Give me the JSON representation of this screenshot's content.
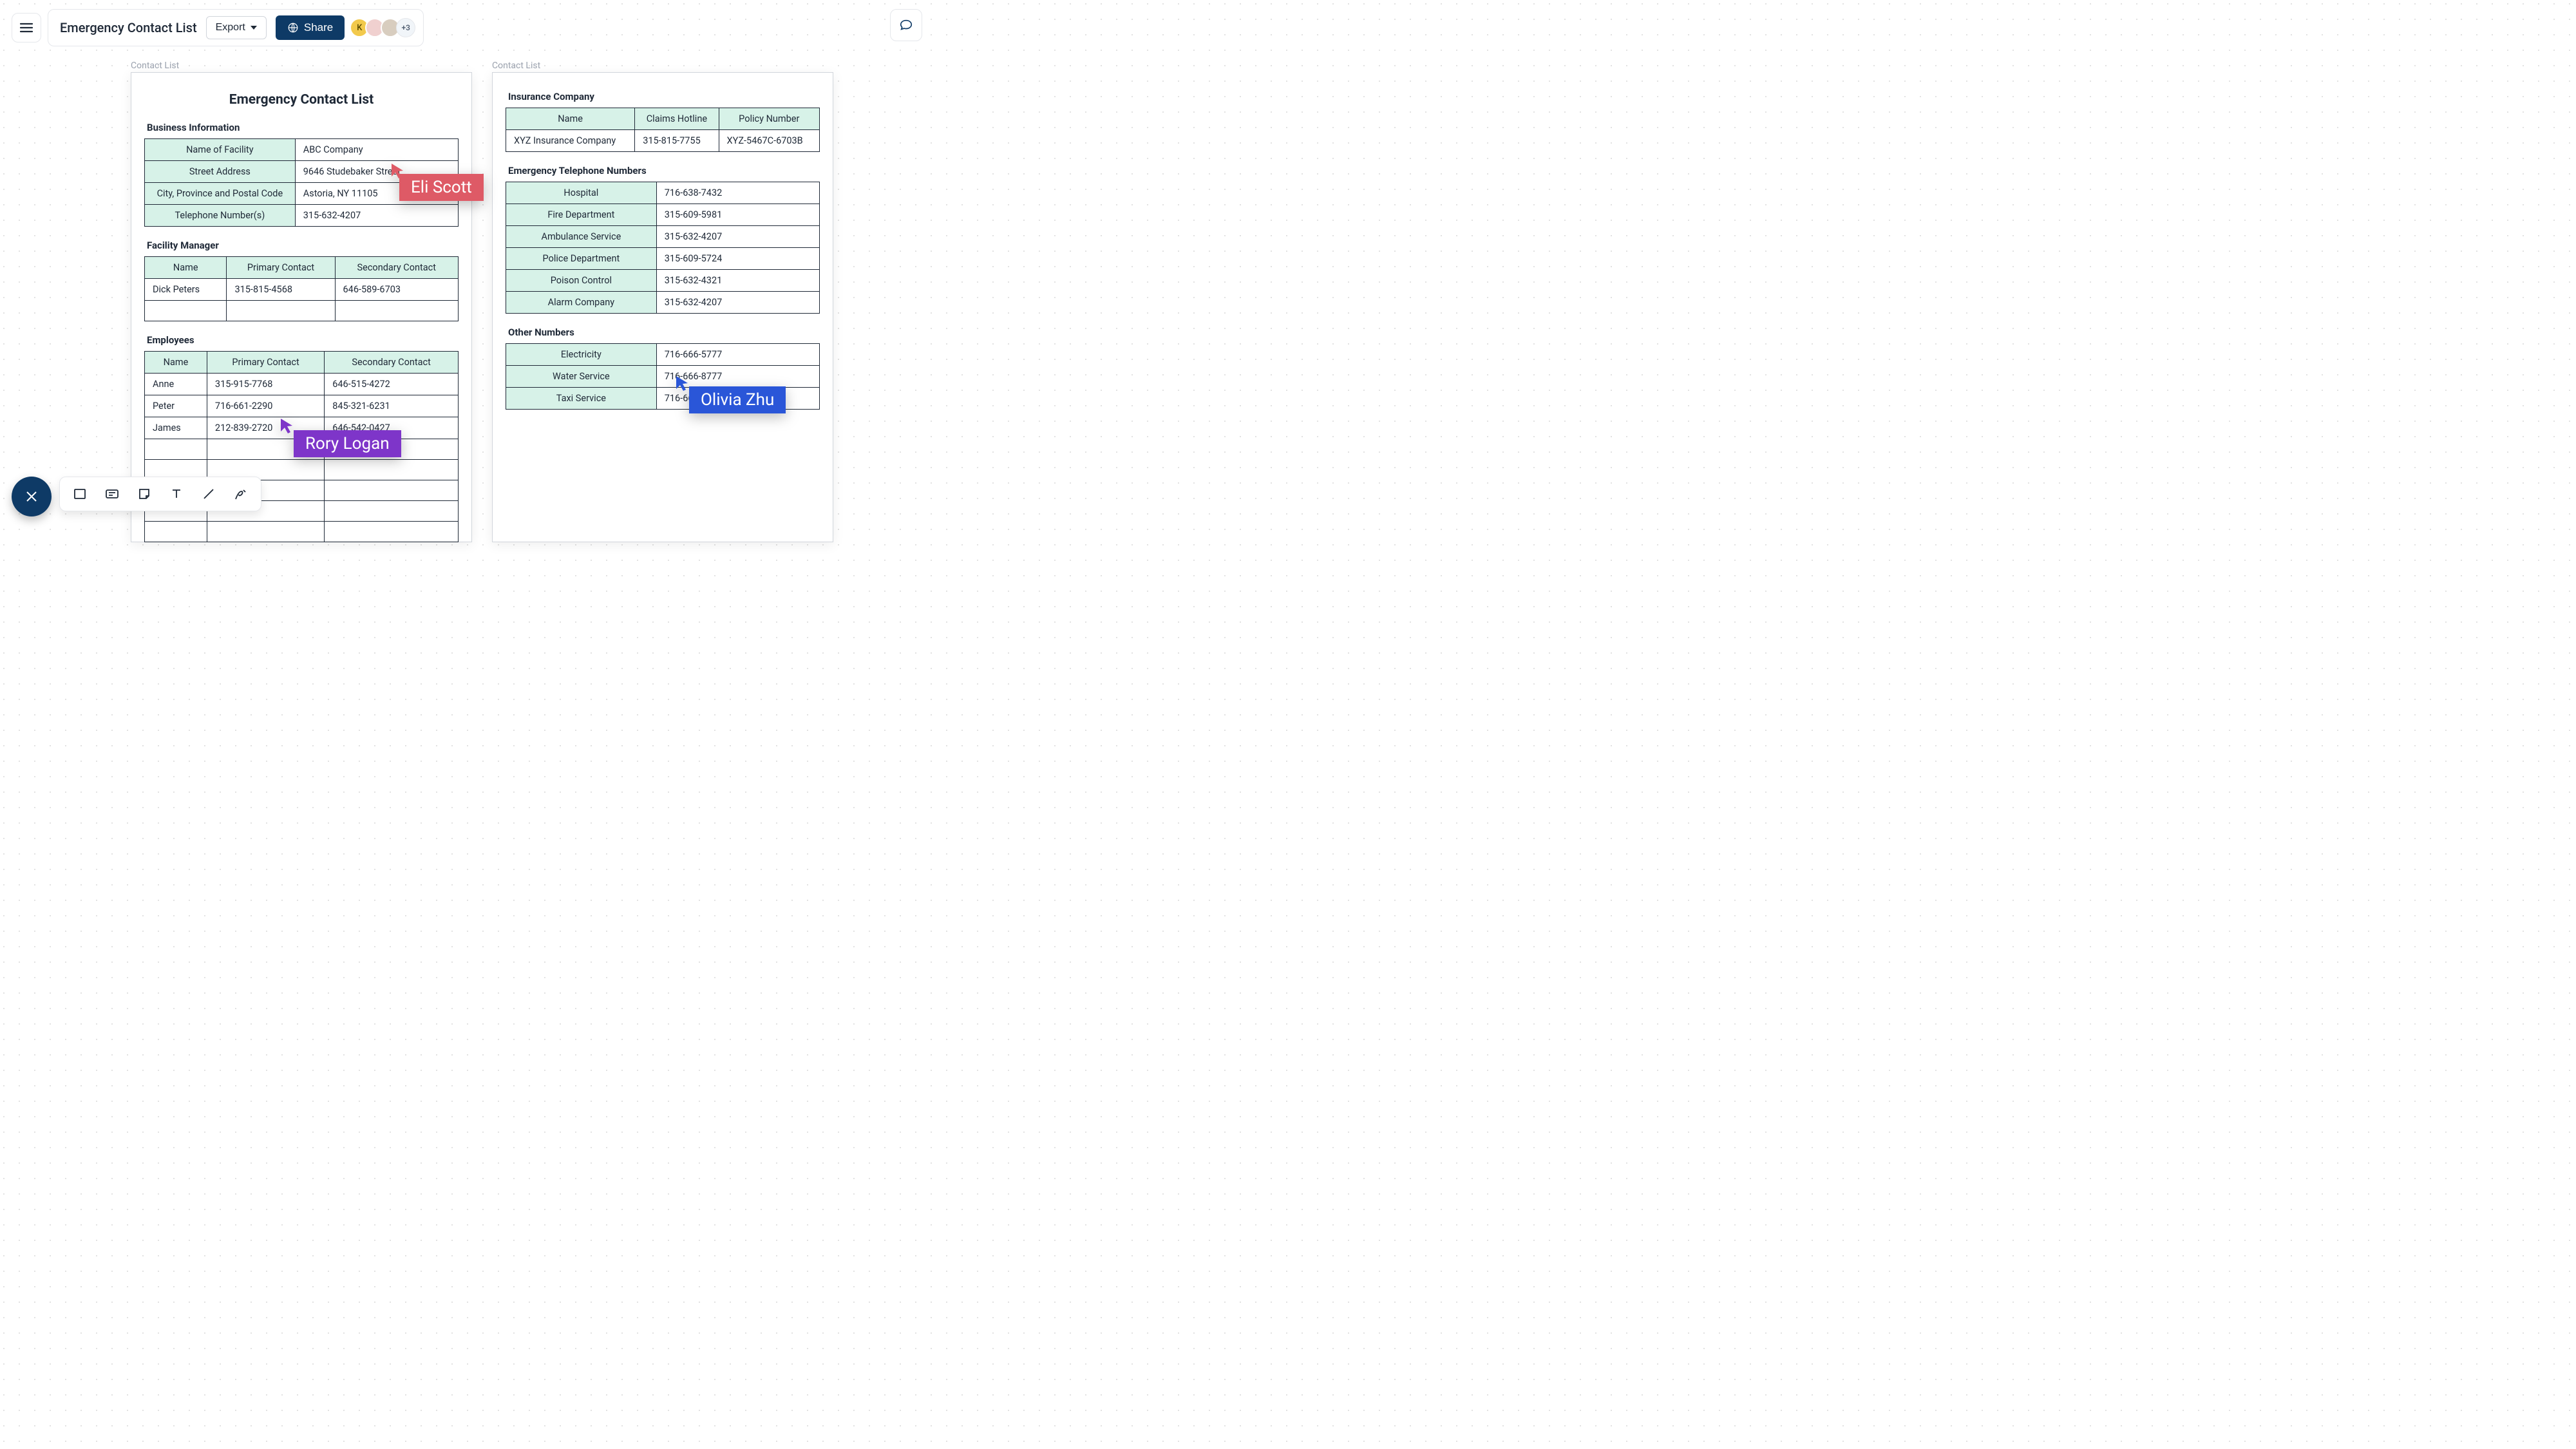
{
  "colors": {
    "brand": "#0e3a66",
    "table_header_bg": "#d7f2e8",
    "border": "#1f2937",
    "muted": "#9ca3af",
    "cursor_red": "#de5a66",
    "cursor_purple": "#7e35c9",
    "cursor_blue": "#2a56d8"
  },
  "toolbar": {
    "title": "Emergency Contact List",
    "export_label": "Export",
    "share_label": "Share",
    "avatars": {
      "a1_letter": "K",
      "a1_bg": "#f2c94c",
      "a2_bg": "#f0d0cf",
      "a3_bg": "#d8cdbf",
      "more_label": "+3"
    }
  },
  "page_left": {
    "tab_label": "Contact List",
    "title": "Emergency Contact List",
    "business_info": {
      "heading": "Business Information",
      "rows": [
        {
          "k": "Name of Facility",
          "v": "ABC Company"
        },
        {
          "k": "Street Address",
          "v": "9646 Studebaker Street"
        },
        {
          "k": "City, Province and Postal Code",
          "v": "Astoria, NY 11105"
        },
        {
          "k": "Telephone Number(s)",
          "v": "315-632-4207"
        }
      ]
    },
    "facility_manager": {
      "heading": "Facility Manager",
      "columns": [
        "Name",
        "Primary Contact",
        "Secondary Contact"
      ],
      "rows": [
        [
          "Dick Peters",
          "315-815-4568",
          "646-589-6703"
        ],
        [
          "",
          "",
          ""
        ]
      ]
    },
    "employees": {
      "heading": "Employees",
      "columns": [
        "Name",
        "Primary Contact",
        "Secondary Contact"
      ],
      "rows": [
        [
          "Anne",
          "315-915-7768",
          "646-515-4272"
        ],
        [
          "Peter",
          "716-661-2290",
          "845-321-6231"
        ],
        [
          "James",
          "212-839-2720",
          "646-542-0427"
        ],
        [
          "",
          "",
          ""
        ],
        [
          "",
          "",
          ""
        ],
        [
          "",
          "",
          ""
        ],
        [
          "",
          "",
          ""
        ],
        [
          "",
          "",
          ""
        ]
      ]
    }
  },
  "page_right": {
    "tab_label": "Contact List",
    "insurance": {
      "heading": "Insurance Company",
      "columns": [
        "Name",
        "Claims Hotline",
        "Policy Number"
      ],
      "rows": [
        [
          "XYZ Insurance Company",
          "315-815-7755",
          "XYZ-5467C-6703B"
        ]
      ]
    },
    "emergency_numbers": {
      "heading": "Emergency Telephone Numbers",
      "rows": [
        {
          "k": "Hospital",
          "v": "716-638-7432"
        },
        {
          "k": "Fire Department",
          "v": "315-609-5981"
        },
        {
          "k": "Ambulance Service",
          "v": "315-632-4207"
        },
        {
          "k": "Police Department",
          "v": "315-609-5724"
        },
        {
          "k": "Poison Control",
          "v": "315-632-4321"
        },
        {
          "k": "Alarm Company",
          "v": "315-632-4207"
        }
      ]
    },
    "other_numbers": {
      "heading": "Other Numbers",
      "rows": [
        {
          "k": "Electricity",
          "v": "716-666-5777"
        },
        {
          "k": "Water Service",
          "v": "716-666-8777"
        },
        {
          "k": "Taxi Service",
          "v": "716-666-7777"
        }
      ]
    }
  },
  "cursors": {
    "eli": {
      "name": "Eli Scott",
      "color": "#de5a66"
    },
    "rory": {
      "name": "Rory Logan",
      "color": "#7e35c9"
    },
    "olivia": {
      "name": "Olivia Zhu",
      "color": "#2a56d8"
    }
  }
}
